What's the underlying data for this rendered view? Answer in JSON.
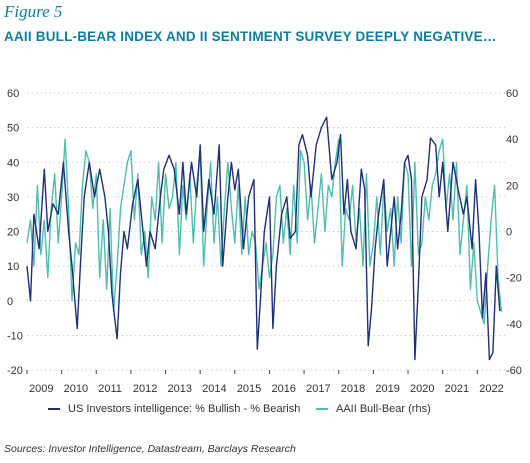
{
  "figure_label": "Figure 5",
  "title": "AAII BULL-BEAR INDEX AND II SENTIMENT SURVEY DEEPLY NEGATIVE…",
  "source": "Sources: Investor Intelligence, Datastream, Barclays Research",
  "colors": {
    "ii": "#1f2f7a",
    "aaii": "#4fbfad",
    "title": "#0b7fa3",
    "grid": "#bdbdbd"
  },
  "chart_data": {
    "type": "line",
    "x_ticks": [
      "2009",
      "2010",
      "2011",
      "2012",
      "2013",
      "2014",
      "2015",
      "2016",
      "2017",
      "2018",
      "2019",
      "2020",
      "2021",
      "2022"
    ],
    "left_axis": {
      "ylim": [
        -20,
        60
      ],
      "ticks": [
        "-20",
        "-10",
        "0",
        "10",
        "20",
        "30",
        "40",
        "50",
        "60"
      ]
    },
    "right_axis": {
      "ylim": [
        -60,
        60
      ],
      "ticks": [
        "-60",
        "-40",
        "-20",
        "0",
        "20",
        "40",
        "60"
      ]
    },
    "grid": "horizontal dotted",
    "legend_position": "bottom",
    "series": [
      {
        "name": "US Investors intelligence: % Bullish - % Bearish",
        "axis": "left",
        "x": [
          2009.0,
          2009.1,
          2009.2,
          2009.35,
          2009.5,
          2009.6,
          2009.75,
          2009.9,
          2010.05,
          2010.2,
          2010.3,
          2010.45,
          2010.55,
          2010.65,
          2010.8,
          2010.95,
          2011.1,
          2011.25,
          2011.35,
          2011.45,
          2011.6,
          2011.7,
          2011.8,
          2011.9,
          2012.05,
          2012.2,
          2012.35,
          2012.45,
          2012.55,
          2012.7,
          2012.85,
          2012.95,
          2013.1,
          2013.25,
          2013.4,
          2013.5,
          2013.6,
          2013.75,
          2013.9,
          2014.0,
          2014.1,
          2014.25,
          2014.4,
          2014.55,
          2014.65,
          2014.8,
          2014.9,
          2015.0,
          2015.1,
          2015.25,
          2015.4,
          2015.55,
          2015.65,
          2015.75,
          2015.85,
          2016.0,
          2016.1,
          2016.2,
          2016.35,
          2016.5,
          2016.6,
          2016.75,
          2016.85,
          2016.95,
          2017.1,
          2017.2,
          2017.35,
          2017.5,
          2017.65,
          2017.8,
          2017.95,
          2018.05,
          2018.15,
          2018.25,
          2018.35,
          2018.5,
          2018.65,
          2018.75,
          2018.85,
          2018.95,
          2019.05,
          2019.15,
          2019.3,
          2019.4,
          2019.5,
          2019.6,
          2019.7,
          2019.8,
          2019.9,
          2020.0,
          2020.1,
          2020.2,
          2020.3,
          2020.4,
          2020.55,
          2020.65,
          2020.8,
          2020.9,
          2021.0,
          2021.15,
          2021.3,
          2021.45,
          2021.6,
          2021.7,
          2021.85,
          2021.95,
          2022.05,
          2022.15,
          2022.25,
          2022.35,
          2022.45,
          2022.55,
          2022.65
        ],
        "y": [
          10,
          0,
          25,
          15,
          38,
          20,
          28,
          25,
          40,
          20,
          10,
          -8,
          12,
          30,
          40,
          30,
          38,
          30,
          20,
          2,
          -11,
          8,
          20,
          15,
          28,
          35,
          20,
          10,
          20,
          15,
          30,
          38,
          42,
          38,
          25,
          40,
          25,
          40,
          30,
          45,
          20,
          35,
          25,
          45,
          10,
          30,
          40,
          32,
          38,
          15,
          30,
          35,
          -14,
          2,
          20,
          30,
          -8,
          10,
          25,
          30,
          18,
          20,
          45,
          48,
          42,
          30,
          45,
          50,
          53,
          35,
          40,
          48,
          25,
          35,
          20,
          15,
          38,
          32,
          -13,
          -2,
          15,
          25,
          35,
          10,
          20,
          30,
          15,
          25,
          40,
          42,
          35,
          -17,
          5,
          30,
          35,
          47,
          45,
          30,
          40,
          20,
          40,
          32,
          25,
          30,
          15,
          35,
          20,
          -5,
          8,
          -17,
          -15,
          10,
          -3
        ]
      },
      {
        "name": "AAII Bull-Bear (rhs)",
        "axis": "right",
        "x": [
          2009.0,
          2009.1,
          2009.2,
          2009.3,
          2009.4,
          2009.5,
          2009.6,
          2009.7,
          2009.8,
          2009.9,
          2010.0,
          2010.1,
          2010.2,
          2010.3,
          2010.4,
          2010.5,
          2010.6,
          2010.7,
          2010.8,
          2010.9,
          2011.0,
          2011.1,
          2011.2,
          2011.3,
          2011.4,
          2011.5,
          2011.6,
          2011.7,
          2011.8,
          2011.9,
          2012.0,
          2012.1,
          2012.2,
          2012.3,
          2012.4,
          2012.5,
          2012.6,
          2012.7,
          2012.8,
          2012.9,
          2013.0,
          2013.1,
          2013.2,
          2013.3,
          2013.4,
          2013.5,
          2013.6,
          2013.7,
          2013.8,
          2013.9,
          2014.0,
          2014.1,
          2014.2,
          2014.3,
          2014.4,
          2014.5,
          2014.6,
          2014.7,
          2014.8,
          2014.9,
          2015.0,
          2015.1,
          2015.2,
          2015.3,
          2015.4,
          2015.5,
          2015.6,
          2015.7,
          2015.8,
          2015.9,
          2016.0,
          2016.1,
          2016.2,
          2016.3,
          2016.4,
          2016.5,
          2016.6,
          2016.7,
          2016.8,
          2016.9,
          2017.0,
          2017.1,
          2017.2,
          2017.3,
          2017.4,
          2017.5,
          2017.6,
          2017.7,
          2017.8,
          2017.9,
          2018.0,
          2018.1,
          2018.2,
          2018.3,
          2018.4,
          2018.5,
          2018.6,
          2018.7,
          2018.8,
          2018.9,
          2019.0,
          2019.1,
          2019.2,
          2019.3,
          2019.4,
          2019.5,
          2019.6,
          2019.7,
          2019.8,
          2019.9,
          2020.0,
          2020.1,
          2020.2,
          2020.3,
          2020.4,
          2020.5,
          2020.6,
          2020.7,
          2020.8,
          2020.9,
          2021.0,
          2021.1,
          2021.2,
          2021.3,
          2021.4,
          2021.5,
          2021.6,
          2021.7,
          2021.8,
          2021.9,
          2022.0,
          2022.1,
          2022.2,
          2022.3,
          2022.4,
          2022.5,
          2022.6,
          2022.7
        ],
        "y": [
          -5,
          5,
          -15,
          20,
          -10,
          5,
          -20,
          10,
          25,
          -5,
          15,
          40,
          10,
          -30,
          -5,
          -10,
          20,
          35,
          30,
          10,
          25,
          -20,
          5,
          -25,
          10,
          -35,
          -15,
          10,
          20,
          30,
          35,
          5,
          25,
          -10,
          0,
          -20,
          15,
          5,
          30,
          -5,
          25,
          10,
          15,
          30,
          -10,
          20,
          5,
          25,
          -5,
          20,
          35,
          -15,
          10,
          30,
          -5,
          15,
          -15,
          10,
          30,
          10,
          -5,
          20,
          -10,
          15,
          -10,
          0,
          -5,
          -25,
          -15,
          -5,
          -20,
          -10,
          15,
          20,
          -5,
          10,
          -10,
          20,
          -5,
          35,
          30,
          5,
          20,
          -5,
          10,
          25,
          0,
          20,
          15,
          30,
          40,
          -15,
          10,
          5,
          20,
          -5,
          10,
          -15,
          25,
          -15,
          -5,
          15,
          -10,
          20,
          0,
          10,
          -15,
          15,
          -5,
          30,
          25,
          -15,
          30,
          -10,
          -5,
          15,
          5,
          20,
          25,
          35,
          40,
          10,
          25,
          5,
          30,
          -10,
          5,
          20,
          -25,
          -5,
          -30,
          -35,
          -40,
          -15,
          5,
          20,
          -20,
          -35
        ]
      }
    ]
  }
}
